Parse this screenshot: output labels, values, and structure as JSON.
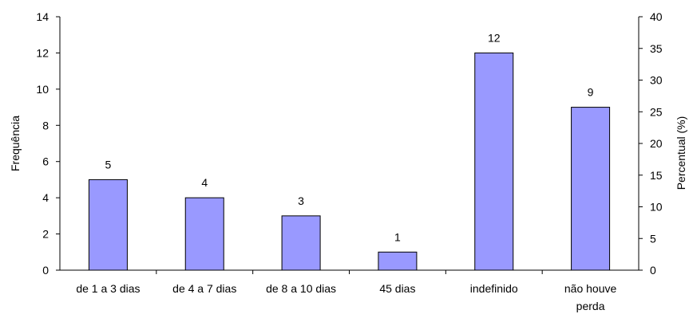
{
  "chart_data": {
    "type": "bar",
    "title": "",
    "xlabel": "",
    "ylabel": "Frequência",
    "y2label": "Percentual (%)",
    "categories": [
      [
        "de 1 a 3 dias"
      ],
      [
        "de 4 a 7 dias"
      ],
      [
        "de 8 a 10 dias"
      ],
      [
        "45 dias"
      ],
      [
        "indefinido"
      ],
      [
        "não houve",
        "perda"
      ]
    ],
    "values": [
      5,
      4,
      3,
      1,
      12,
      9
    ],
    "data_labels": [
      "5",
      "4",
      "3",
      "1",
      "12",
      "9"
    ],
    "ylim": [
      0,
      14
    ],
    "yticks": [
      0,
      2,
      4,
      6,
      8,
      10,
      12,
      14
    ],
    "y2lim": [
      0,
      40
    ],
    "y2ticks": [
      0,
      5,
      10,
      15,
      20,
      25,
      30,
      35,
      40
    ],
    "grid": false,
    "legend": "none",
    "bar_color": "#9999FF",
    "bar_stroke": "#000000"
  }
}
